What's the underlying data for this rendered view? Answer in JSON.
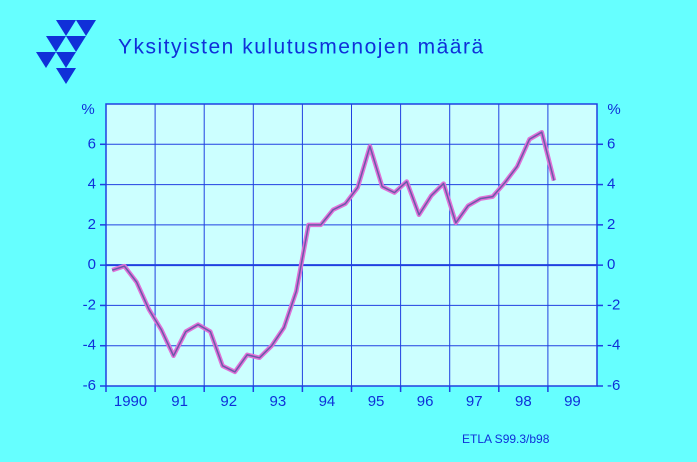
{
  "chart_data": {
    "type": "line",
    "title": "Yksityisten kulutusmenojen määrä",
    "note": "ETLA S99.3/b98",
    "y_label": "%",
    "xlim": [
      1990,
      2000
    ],
    "xticks": [
      1990,
      {
        "value": 1991,
        "label": "91"
      },
      {
        "value": 1992,
        "label": "92"
      },
      {
        "value": 1993,
        "label": "93"
      },
      {
        "value": 1994,
        "label": "94"
      },
      {
        "value": 1995,
        "label": "95"
      },
      {
        "value": 1996,
        "label": "96"
      },
      {
        "value": 1997,
        "label": "97"
      },
      {
        "value": 1998,
        "label": "98"
      },
      {
        "value": 1999,
        "label": "99"
      }
    ],
    "ylim": [
      -6,
      8
    ],
    "yticks": [
      -6,
      -4,
      -2,
      0,
      2,
      4,
      6
    ],
    "grid": true,
    "x": [
      1990.125,
      1990.375,
      1990.625,
      1990.875,
      1991.125,
      1991.375,
      1991.625,
      1991.875,
      1992.125,
      1992.375,
      1992.625,
      1992.875,
      1993.125,
      1993.375,
      1993.625,
      1993.875,
      1994.125,
      1994.375,
      1994.625,
      1994.875,
      1995.125,
      1995.375,
      1995.625,
      1995.875,
      1996.125,
      1996.375,
      1996.625,
      1996.875,
      1997.125,
      1997.375,
      1997.625,
      1997.875,
      1998.125,
      1998.375,
      1998.625,
      1998.875,
      1999.125
    ],
    "series": [
      {
        "color": "#e070d8",
        "values": [
          -0.25,
          -0.05,
          -0.85,
          -2.2,
          -3.2,
          -4.5,
          -3.3,
          -2.95,
          -3.3,
          -5.0,
          -5.3,
          -4.45,
          -4.6,
          -4.0,
          -3.1,
          -1.3,
          2.0,
          2.0,
          2.75,
          3.05,
          3.85,
          5.9,
          3.9,
          3.6,
          4.15,
          2.5,
          3.45,
          4.05,
          2.1,
          2.95,
          3.3,
          3.4,
          4.1,
          4.9,
          6.25,
          6.6,
          4.2
        ]
      }
    ]
  }
}
